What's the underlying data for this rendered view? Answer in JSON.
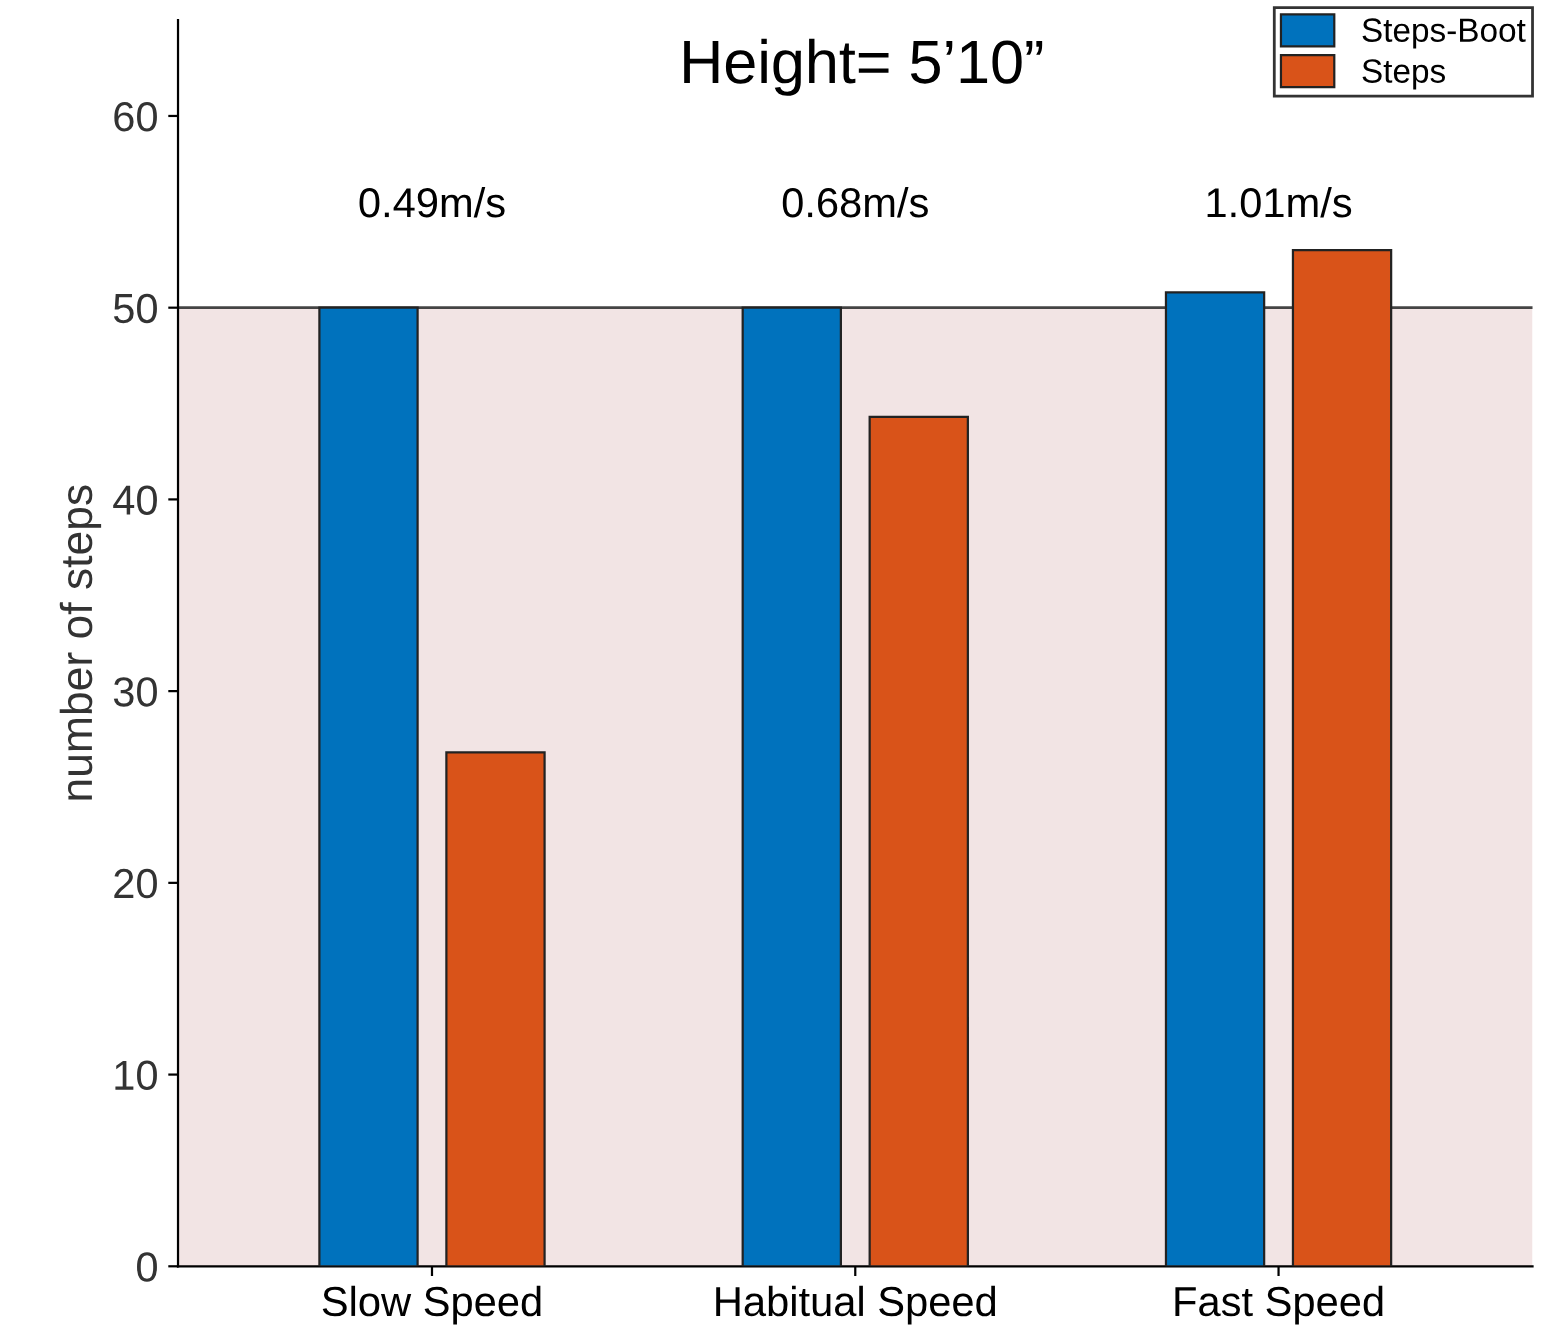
{
  "chart_data": {
    "type": "bar",
    "ylabel": "number of steps",
    "categories": [
      "Slow Speed",
      "Habitual Speed",
      "Fast Speed"
    ],
    "series": [
      {
        "name": "Steps-Boot",
        "color": "#0072bd",
        "values": [
          50,
          50,
          50.8
        ]
      },
      {
        "name": "Steps",
        "color": "#d95319",
        "values": [
          26.8,
          44.3,
          53.0
        ]
      }
    ],
    "ylim": [
      0,
      65
    ],
    "yticks": [
      0,
      10,
      20,
      30,
      40,
      50,
      60
    ],
    "bands": [
      {
        "axis": "y",
        "from": 0,
        "to": 50,
        "color": "#f2e4e4"
      }
    ],
    "ref_lines": [
      {
        "axis": "y",
        "value": 50,
        "color": "#444444"
      }
    ],
    "annotations": [
      "Height= 5’10”",
      "0.49m/s",
      "0.68m/s",
      "1.01m/s"
    ],
    "grid": false,
    "legend": "top right"
  }
}
